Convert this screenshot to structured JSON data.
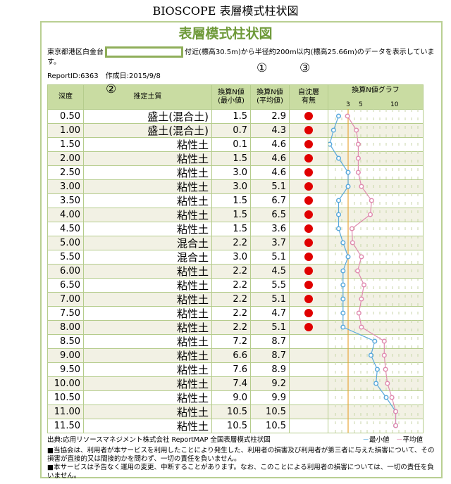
{
  "title": "BIOSCOPE 表層模式柱状図",
  "subtitle": "表層模式柱状図",
  "desc_before": "東京都港区白金台",
  "desc_after": "付近(標高30.5m)から半径約200m以内(標高25.66m)のデータを表示しています。",
  "marks": [
    "①",
    "②",
    "③"
  ],
  "report": "ReportID:6363　作成日:2015/9/8",
  "headers": {
    "depth": "深度",
    "soil": "推定土質",
    "nmin": "換算N値\n(最小値)",
    "navg": "換算N値\n(平均値)",
    "sub": "自沈層\n有無",
    "graph": "換算N値グラフ"
  },
  "graph_ticks": [
    "3",
    "5",
    "10"
  ],
  "colors": {
    "min": "#5aa9dc",
    "avg": "#e08cb0",
    "ref": "#e8a63a",
    "dot": "#e00000"
  },
  "rows": [
    {
      "depth": "0.50",
      "soil": "盛土(混合土)",
      "nmin": "1.5",
      "navg": "2.9",
      "sub": true
    },
    {
      "depth": "1.00",
      "soil": "盛土(混合土)",
      "nmin": "0.7",
      "navg": "4.3",
      "sub": true
    },
    {
      "depth": "1.50",
      "soil": "粘性土",
      "nmin": "0.1",
      "navg": "4.6",
      "sub": true
    },
    {
      "depth": "2.00",
      "soil": "粘性土",
      "nmin": "1.5",
      "navg": "4.6",
      "sub": true
    },
    {
      "depth": "2.50",
      "soil": "粘性土",
      "nmin": "3.0",
      "navg": "4.6",
      "sub": true
    },
    {
      "depth": "3.00",
      "soil": "粘性土",
      "nmin": "3.0",
      "navg": "5.1",
      "sub": true
    },
    {
      "depth": "3.50",
      "soil": "粘性土",
      "nmin": "1.5",
      "navg": "6.7",
      "sub": true
    },
    {
      "depth": "4.00",
      "soil": "粘性土",
      "nmin": "1.5",
      "navg": "6.5",
      "sub": true
    },
    {
      "depth": "4.50",
      "soil": "粘性土",
      "nmin": "1.5",
      "navg": "3.6",
      "sub": true
    },
    {
      "depth": "5.00",
      "soil": "混合土",
      "nmin": "2.2",
      "navg": "3.7",
      "sub": true
    },
    {
      "depth": "5.50",
      "soil": "混合土",
      "nmin": "3.0",
      "navg": "5.1",
      "sub": true
    },
    {
      "depth": "6.00",
      "soil": "粘性土",
      "nmin": "2.2",
      "navg": "4.5",
      "sub": true
    },
    {
      "depth": "6.50",
      "soil": "粘性土",
      "nmin": "2.2",
      "navg": "5.5",
      "sub": true
    },
    {
      "depth": "7.00",
      "soil": "粘性土",
      "nmin": "2.2",
      "navg": "5.1",
      "sub": true
    },
    {
      "depth": "7.50",
      "soil": "粘性土",
      "nmin": "2.2",
      "navg": "4.7",
      "sub": true
    },
    {
      "depth": "8.00",
      "soil": "粘性土",
      "nmin": "2.2",
      "navg": "5.1",
      "sub": true
    },
    {
      "depth": "8.50",
      "soil": "粘性土",
      "nmin": "7.2",
      "navg": "8.7",
      "sub": false
    },
    {
      "depth": "9.00",
      "soil": "粘性土",
      "nmin": "6.6",
      "navg": "8.7",
      "sub": false
    },
    {
      "depth": "9.50",
      "soil": "粘性土",
      "nmin": "7.6",
      "navg": "8.9",
      "sub": false
    },
    {
      "depth": "10.00",
      "soil": "粘性土",
      "nmin": "7.4",
      "navg": "9.2",
      "sub": false
    },
    {
      "depth": "10.50",
      "soil": "粘性土",
      "nmin": "9.0",
      "navg": "9.9",
      "sub": false
    },
    {
      "depth": "11.00",
      "soil": "粘性土",
      "nmin": "10.5",
      "navg": "10.5",
      "sub": false
    },
    {
      "depth": "11.50",
      "soil": "粘性土",
      "nmin": "10.5",
      "navg": "10.5",
      "sub": false
    }
  ],
  "source": "出典:応用リソースマネジメント株式会社 ReportMAP 全国表層模式柱状図",
  "legend": {
    "min": "最小値",
    "avg": "平均値"
  },
  "notes": [
    "■当協会は、利用者が本サービスを利用したことにより発生した、利用者の損害及び利用者が第三者に与えた損害について、その損害が直接的又は間接的かを問わず、一切の責任を負いません。",
    "■本サービスは予告なく運用の変更、中断することがあります。なお、このことによる利用者の損害については、一切の責任を負いません。"
  ]
}
